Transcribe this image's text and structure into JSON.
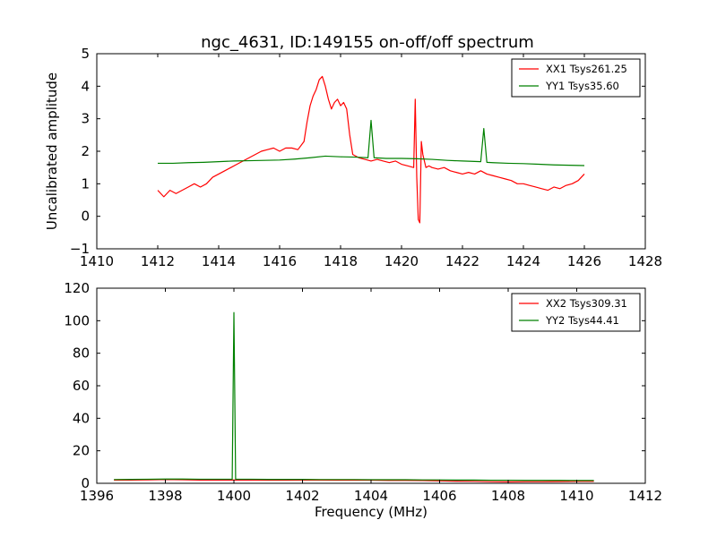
{
  "chart_data": [
    {
      "type": "line",
      "title": "ngc_4631, ID:149155 on-off/off spectrum",
      "xlabel": "",
      "ylabel": "Uncalibrated amplitude",
      "xlim": [
        1410,
        1428
      ],
      "ylim": [
        -1,
        5
      ],
      "xticks": [
        "1410",
        "1412",
        "1414",
        "1416",
        "1418",
        "1420",
        "1422",
        "1424",
        "1426",
        "1428"
      ],
      "yticks": [
        "−1",
        "0",
        "1",
        "2",
        "3",
        "4",
        "5"
      ],
      "grid": false,
      "legend_position": "top-right",
      "series": [
        {
          "name": "XX1 Tsys261.25",
          "color": "#ff0000",
          "x": [
            1412.0,
            1412.2,
            1412.4,
            1412.6,
            1412.8,
            1413.0,
            1413.2,
            1413.4,
            1413.6,
            1413.8,
            1414.0,
            1414.2,
            1414.4,
            1414.6,
            1414.8,
            1415.0,
            1415.2,
            1415.4,
            1415.6,
            1415.8,
            1416.0,
            1416.2,
            1416.4,
            1416.6,
            1416.8,
            1416.9,
            1417.0,
            1417.1,
            1417.2,
            1417.3,
            1417.4,
            1417.5,
            1417.6,
            1417.7,
            1417.8,
            1417.9,
            1418.0,
            1418.1,
            1418.2,
            1418.3,
            1418.4,
            1418.6,
            1418.8,
            1419.0,
            1419.2,
            1419.4,
            1419.6,
            1419.8,
            1420.0,
            1420.2,
            1420.4,
            1420.45,
            1420.5,
            1420.55,
            1420.6,
            1420.65,
            1420.7,
            1420.8,
            1420.9,
            1421.0,
            1421.2,
            1421.4,
            1421.6,
            1421.8,
            1422.0,
            1422.2,
            1422.4,
            1422.6,
            1422.8,
            1423.0,
            1423.2,
            1423.4,
            1423.6,
            1423.8,
            1424.0,
            1424.2,
            1424.4,
            1424.6,
            1424.8,
            1425.0,
            1425.2,
            1425.4,
            1425.6,
            1425.8,
            1426.0
          ],
          "y": [
            0.8,
            0.6,
            0.8,
            0.7,
            0.8,
            0.9,
            1.0,
            0.9,
            1.0,
            1.2,
            1.3,
            1.4,
            1.5,
            1.6,
            1.7,
            1.8,
            1.9,
            2.0,
            2.05,
            2.1,
            2.0,
            2.1,
            2.1,
            2.05,
            2.3,
            2.9,
            3.4,
            3.7,
            3.9,
            4.2,
            4.3,
            4.0,
            3.6,
            3.3,
            3.5,
            3.6,
            3.4,
            3.5,
            3.3,
            2.5,
            1.9,
            1.8,
            1.75,
            1.7,
            1.75,
            1.7,
            1.65,
            1.7,
            1.6,
            1.55,
            1.5,
            3.6,
            1.2,
            -0.1,
            -0.2,
            2.3,
            1.9,
            1.5,
            1.55,
            1.5,
            1.45,
            1.5,
            1.4,
            1.35,
            1.3,
            1.35,
            1.3,
            1.4,
            1.3,
            1.25,
            1.2,
            1.15,
            1.1,
            1.0,
            1.0,
            0.95,
            0.9,
            0.85,
            0.8,
            0.9,
            0.85,
            0.95,
            1.0,
            1.1,
            1.3
          ]
        },
        {
          "name": "YY1 Tsys35.60",
          "color": "#008000",
          "x": [
            1412.0,
            1412.5,
            1413.0,
            1413.5,
            1414.0,
            1414.5,
            1415.0,
            1415.5,
            1416.0,
            1416.5,
            1417.0,
            1417.5,
            1418.0,
            1418.5,
            1418.9,
            1419.0,
            1419.1,
            1419.5,
            1420.0,
            1420.5,
            1421.0,
            1421.5,
            1422.0,
            1422.6,
            1422.7,
            1422.8,
            1423.0,
            1423.5,
            1424.0,
            1424.5,
            1425.0,
            1425.5,
            1426.0
          ],
          "y": [
            1.63,
            1.63,
            1.65,
            1.66,
            1.68,
            1.7,
            1.71,
            1.72,
            1.73,
            1.76,
            1.8,
            1.85,
            1.83,
            1.82,
            1.8,
            2.95,
            1.8,
            1.78,
            1.78,
            1.77,
            1.75,
            1.72,
            1.7,
            1.68,
            2.7,
            1.66,
            1.65,
            1.63,
            1.62,
            1.6,
            1.58,
            1.57,
            1.56
          ]
        }
      ]
    },
    {
      "type": "line",
      "title": "",
      "xlabel": "Frequency (MHz)",
      "ylabel": "",
      "xlim": [
        1396,
        1412
      ],
      "ylim": [
        0,
        120
      ],
      "xticks": [
        "1396",
        "1398",
        "1400",
        "1402",
        "1404",
        "1406",
        "1408",
        "1410",
        "1412"
      ],
      "yticks": [
        "0",
        "20",
        "40",
        "60",
        "80",
        "100",
        "120"
      ],
      "grid": false,
      "legend_position": "top-right",
      "series": [
        {
          "name": "XX2 Tsys309.31",
          "color": "#ff0000",
          "x": [
            1396.5,
            1397.0,
            1397.5,
            1398.0,
            1398.5,
            1399.0,
            1399.5,
            1400.0,
            1400.5,
            1401.0,
            1401.5,
            1402.0,
            1402.5,
            1403.0,
            1403.5,
            1404.0,
            1404.5,
            1405.0,
            1405.5,
            1406.0,
            1406.5,
            1407.0,
            1407.5,
            1408.0,
            1408.5,
            1409.0,
            1409.5,
            1410.0,
            1410.5
          ],
          "y": [
            2.0,
            2.0,
            2.1,
            2.3,
            2.2,
            2.0,
            2.0,
            2.0,
            2.0,
            1.9,
            1.9,
            2.0,
            2.0,
            1.9,
            1.9,
            1.9,
            1.8,
            1.8,
            1.7,
            1.5,
            1.3,
            1.2,
            1.0,
            0.9,
            1.0,
            1.0,
            1.1,
            1.2,
            1.2
          ]
        },
        {
          "name": "YY2 Tsys44.41",
          "color": "#008000",
          "x": [
            1396.5,
            1397.0,
            1397.5,
            1398.0,
            1398.5,
            1399.0,
            1399.5,
            1399.95,
            1400.0,
            1400.05,
            1400.5,
            1401.0,
            1401.5,
            1402.0,
            1402.5,
            1403.0,
            1403.5,
            1404.0,
            1404.5,
            1405.0,
            1405.5,
            1406.0,
            1406.5,
            1407.0,
            1407.5,
            1408.0,
            1408.5,
            1409.0,
            1409.5,
            1410.0,
            1410.5
          ],
          "y": [
            2.3,
            2.4,
            2.5,
            2.6,
            2.6,
            2.5,
            2.5,
            2.5,
            105,
            2.5,
            2.5,
            2.4,
            2.4,
            2.4,
            2.3,
            2.3,
            2.3,
            2.2,
            2.2,
            2.2,
            2.1,
            2.1,
            2.0,
            2.0,
            1.9,
            1.9,
            1.8,
            1.8,
            1.8,
            1.7,
            1.7
          ]
        }
      ]
    }
  ]
}
